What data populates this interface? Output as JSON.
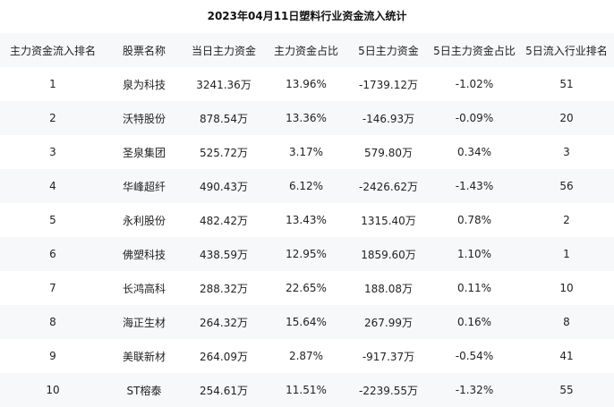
{
  "title": "2023年04月11日塑料行业资金流入统计",
  "columns": [
    "主力资金流入排名",
    "股票名称",
    "当日主力资金",
    "主力资金占比",
    "5日主力资金",
    "5日主力资金占比",
    "5日流入行业排名"
  ],
  "rows": [
    [
      "1",
      "泉为科技",
      "3241.36万",
      "13.96%",
      "-1739.12万",
      "-1.02%",
      "51"
    ],
    [
      "2",
      "沃特股份",
      "878.54万",
      "13.36%",
      "-146.93万",
      "-0.09%",
      "20"
    ],
    [
      "3",
      "圣泉集团",
      "525.72万",
      "3.17%",
      "579.80万",
      "0.34%",
      "3"
    ],
    [
      "4",
      "华峰超纤",
      "490.43万",
      "6.12%",
      "-2426.62万",
      "-1.43%",
      "56"
    ],
    [
      "5",
      "永利股份",
      "482.42万",
      "13.43%",
      "1315.40万",
      "0.78%",
      "2"
    ],
    [
      "6",
      "佛塑科技",
      "438.59万",
      "12.95%",
      "1859.60万",
      "1.10%",
      "1"
    ],
    [
      "7",
      "长鸿高科",
      "288.32万",
      "22.65%",
      "188.08万",
      "0.11%",
      "10"
    ],
    [
      "8",
      "海正生材",
      "264.32万",
      "15.64%",
      "267.99万",
      "0.16%",
      "8"
    ],
    [
      "9",
      "美联新材",
      "264.09万",
      "2.87%",
      "-917.37万",
      "-0.54%",
      "41"
    ],
    [
      "10",
      "ST榕泰",
      "254.61万",
      "11.51%",
      "-2239.55万",
      "-1.32%",
      "55"
    ]
  ]
}
